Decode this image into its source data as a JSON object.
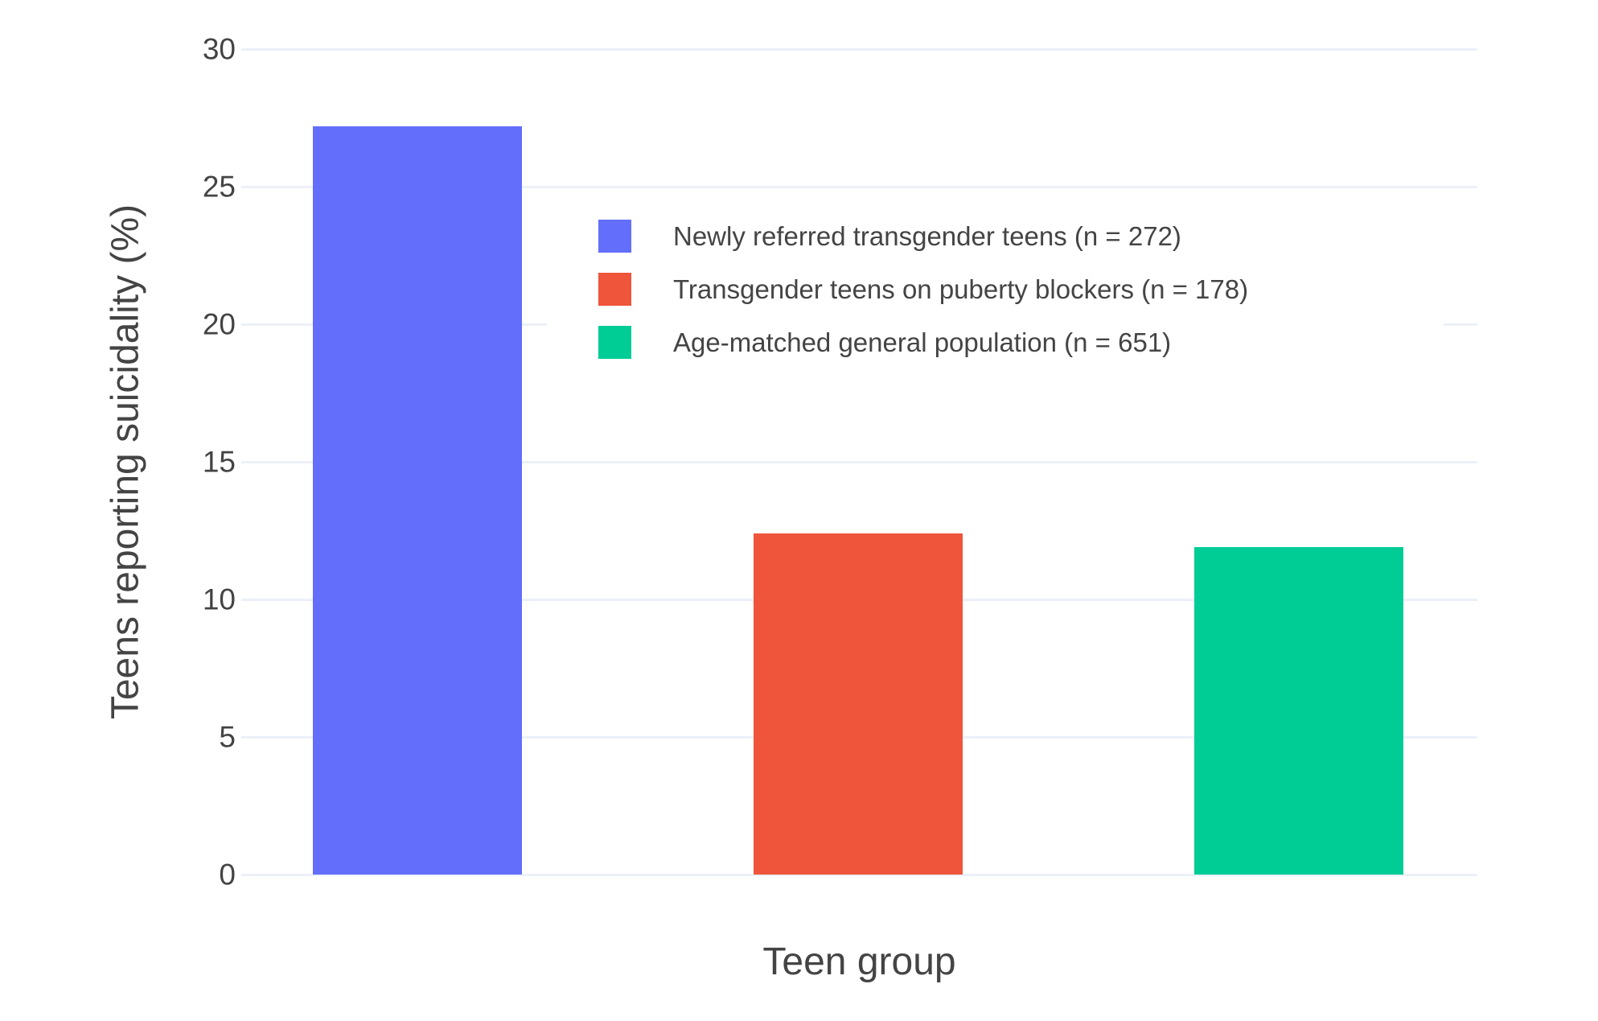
{
  "chart_data": {
    "type": "bar",
    "title": "",
    "xlabel": "Teen group",
    "ylabel": "Teens reporting suicidality (%)",
    "categories": [
      "Newly referred transgender teens (n = 272)",
      "Transgender teens on puberty blockers (n = 178)",
      "Age-matched general population (n = 651)"
    ],
    "values": [
      27.2,
      12.4,
      11.9
    ],
    "bar_colors": [
      "#636EFA",
      "#EF553B",
      "#00CC96"
    ],
    "ylim": [
      0,
      30
    ],
    "yticks": [
      "0",
      "5",
      "10",
      "15",
      "20",
      "25",
      "30"
    ],
    "grid": true,
    "legend_position": "inside-top-center",
    "legend_entries": [
      {
        "label": "Newly referred transgender teens (n = 272)",
        "color": "#636EFA"
      },
      {
        "label": "Transgender teens on puberty blockers (n = 178)",
        "color": "#EF553B"
      },
      {
        "label": "Age-matched general population (n = 651)",
        "color": "#00CC96"
      }
    ]
  },
  "colors": {
    "background": "#FFFFFF",
    "gridline": "#EBF0F8",
    "text": "#444444",
    "bar_blue": "#636EFA",
    "bar_red": "#EF553B",
    "bar_green": "#00CC96"
  }
}
